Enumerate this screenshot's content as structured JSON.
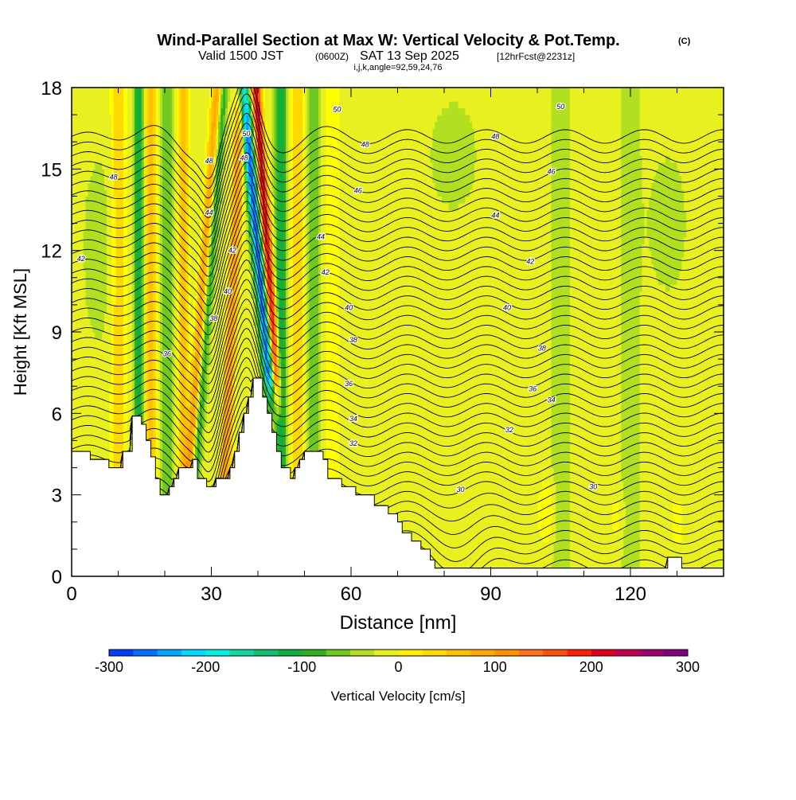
{
  "chart_data": {
    "type": "heatmap",
    "title_main": "Wind-Parallel Section at Max W: Vertical Velocity & Pot.Temp.",
    "title_mark": "(C)",
    "subtitle_valid": "Valid 1500 JST",
    "subtitle_utc": "(0600Z)",
    "subtitle_date": "SAT 13 Sep 2025",
    "subtitle_fcst": "[12hrFcst@2231z]",
    "subtitle_ijk": "i,j,k,angle=92,59,24,76",
    "xlabel": "Distance [nm]",
    "ylabel": "Height [Kft MSL]",
    "xlim": [
      0,
      140
    ],
    "ylim": [
      0,
      18
    ],
    "x_ticks": [
      0,
      30,
      60,
      90,
      120
    ],
    "x_tick_labels": [
      "0",
      "30",
      "60",
      "90",
      "120"
    ],
    "y_ticks": [
      0,
      3,
      6,
      9,
      12,
      15,
      18
    ],
    "y_tick_labels": [
      "0",
      "3",
      "6",
      "9",
      "12",
      "15",
      "18"
    ],
    "colorbar": {
      "label": "Vertical Velocity [cm/s]",
      "min": -300,
      "max": 300,
      "step": 25,
      "tick_values": [
        -300,
        -200,
        -100,
        0,
        100,
        200,
        300
      ],
      "tick_labels": [
        "-300",
        "-200",
        "-100",
        "0",
        "100",
        "200",
        "300"
      ],
      "colors": [
        "#0000f0",
        "#0040f8",
        "#0070ff",
        "#00a8ff",
        "#00d8ff",
        "#00f0e0",
        "#10d8a0",
        "#10c070",
        "#10b040",
        "#30b020",
        "#70c820",
        "#b0e020",
        "#e8f020",
        "#fff000",
        "#ffd800",
        "#ffc000",
        "#ffa800",
        "#ff9000",
        "#ff7020",
        "#ff5010",
        "#ff2000",
        "#e00020",
        "#c00050",
        "#a00070",
        "#800080",
        "#600090"
      ]
    },
    "topography": [
      [
        0,
        4.6
      ],
      [
        4,
        4.6
      ],
      [
        4,
        4.3
      ],
      [
        8,
        4.3
      ],
      [
        8,
        4.0
      ],
      [
        11,
        4.0
      ],
      [
        11,
        4.6
      ],
      [
        13,
        4.6
      ],
      [
        13,
        5.9
      ],
      [
        15,
        5.9
      ],
      [
        15,
        5.6
      ],
      [
        16,
        5.6
      ],
      [
        16,
        5.0
      ],
      [
        17,
        5.0
      ],
      [
        17,
        4.4
      ],
      [
        18,
        4.4
      ],
      [
        18,
        3.6
      ],
      [
        19,
        3.6
      ],
      [
        19,
        3.0
      ],
      [
        21,
        3.0
      ],
      [
        21,
        3.3
      ],
      [
        22,
        3.3
      ],
      [
        22,
        3.6
      ],
      [
        23,
        3.6
      ],
      [
        23,
        4.0
      ],
      [
        26,
        4.0
      ],
      [
        26,
        4.3
      ],
      [
        27,
        4.3
      ],
      [
        27,
        3.6
      ],
      [
        29,
        3.6
      ],
      [
        29,
        3.3
      ],
      [
        31,
        3.3
      ],
      [
        31,
        3.6
      ],
      [
        34,
        3.6
      ],
      [
        34,
        4.0
      ],
      [
        35,
        4.0
      ],
      [
        35,
        4.6
      ],
      [
        36,
        4.6
      ],
      [
        36,
        5.3
      ],
      [
        37,
        5.3
      ],
      [
        37,
        6.0
      ],
      [
        38,
        6.0
      ],
      [
        38,
        6.6
      ],
      [
        39,
        6.6
      ],
      [
        39,
        7.3
      ],
      [
        41,
        7.3
      ],
      [
        41,
        6.6
      ],
      [
        42,
        6.6
      ],
      [
        42,
        6.0
      ],
      [
        43,
        6.0
      ],
      [
        43,
        5.3
      ],
      [
        44,
        5.3
      ],
      [
        44,
        4.6
      ],
      [
        45,
        4.6
      ],
      [
        45,
        4.0
      ],
      [
        47,
        4.0
      ],
      [
        47,
        3.6
      ],
      [
        48,
        3.6
      ],
      [
        48,
        4.0
      ],
      [
        49,
        4.0
      ],
      [
        49,
        4.3
      ],
      [
        50,
        4.3
      ],
      [
        50,
        4.6
      ],
      [
        54,
        4.6
      ],
      [
        54,
        4.3
      ],
      [
        55,
        4.3
      ],
      [
        55,
        3.6
      ],
      [
        58,
        3.6
      ],
      [
        58,
        3.3
      ],
      [
        61,
        3.3
      ],
      [
        61,
        3.0
      ],
      [
        65,
        3.0
      ],
      [
        65,
        2.6
      ],
      [
        68,
        2.6
      ],
      [
        68,
        2.3
      ],
      [
        70,
        2.3
      ],
      [
        70,
        2.0
      ],
      [
        71,
        2.0
      ],
      [
        71,
        1.6
      ],
      [
        73,
        1.6
      ],
      [
        73,
        1.3
      ],
      [
        75,
        1.3
      ],
      [
        75,
        1.0
      ],
      [
        77,
        1.0
      ],
      [
        77,
        0.6
      ],
      [
        78,
        0.6
      ],
      [
        78,
        0.3
      ],
      [
        128,
        0.3
      ],
      [
        128,
        0.7
      ],
      [
        131,
        0.7
      ],
      [
        131,
        0.3
      ],
      [
        140,
        0.3
      ]
    ],
    "w_bands": [
      {
        "x": 10,
        "w": 1.6,
        "amp": 60,
        "x0": 10
      },
      {
        "x": 14.5,
        "w": 1.0,
        "amp": -110,
        "x0": 14.5
      },
      {
        "x": 17,
        "w": 1.3,
        "amp": 90,
        "x0": 17
      },
      {
        "x": 20.5,
        "w": 1.6,
        "amp": -50,
        "x0": 20.5
      },
      {
        "x": 24,
        "w": 1.2,
        "amp": 70,
        "x0": 24
      },
      {
        "x": 28.5,
        "w": 1.3,
        "amp": 130,
        "x0": 29,
        "tilt": 0.42
      },
      {
        "x": 31.5,
        "w": 1.0,
        "amp": -130,
        "x0": 30,
        "tilt": 0.42
      },
      {
        "x": 35,
        "w": 1.3,
        "amp": 110,
        "x0": 35,
        "tilt": 0.25
      },
      {
        "x": 38,
        "w": 1.2,
        "amp": -260,
        "x0": 40,
        "tilt": -0.52
      },
      {
        "x": 42,
        "w": 1.0,
        "amp": 240,
        "x0": 42,
        "tilt": -0.4
      },
      {
        "x": 45,
        "w": 1.2,
        "amp": -110,
        "x0": 45
      },
      {
        "x": 48.5,
        "w": 1.3,
        "amp": 60,
        "x0": 48.5
      },
      {
        "x": 52,
        "w": 1.5,
        "amp": -50,
        "x0": 52
      },
      {
        "x": 56,
        "w": 1.8,
        "amp": 35,
        "x0": 56
      },
      {
        "x": 105,
        "w": 2.0,
        "amp": -25,
        "x0": 105
      },
      {
        "x": 120,
        "w": 2.5,
        "amp": -20,
        "x0": 120
      }
    ],
    "theta_contour_labels": [
      {
        "x": 9,
        "y": 14.7,
        "t": "48"
      },
      {
        "x": 2,
        "y": 11.7,
        "t": "42"
      },
      {
        "x": 20.5,
        "y": 8.2,
        "t": "36"
      },
      {
        "x": 29.5,
        "y": 15.3,
        "t": "48"
      },
      {
        "x": 29.5,
        "y": 13.4,
        "t": "44"
      },
      {
        "x": 34.5,
        "y": 12.0,
        "t": "42"
      },
      {
        "x": 33.5,
        "y": 10.5,
        "t": "40"
      },
      {
        "x": 30.5,
        "y": 9.5,
        "t": "38"
      },
      {
        "x": 37.5,
        "y": 16.3,
        "t": "50"
      },
      {
        "x": 37,
        "y": 15.4,
        "t": "48"
      },
      {
        "x": 57,
        "y": 17.2,
        "t": "50"
      },
      {
        "x": 63,
        "y": 15.9,
        "t": "48"
      },
      {
        "x": 61.5,
        "y": 14.2,
        "t": "46"
      },
      {
        "x": 53.5,
        "y": 12.5,
        "t": "44"
      },
      {
        "x": 54.5,
        "y": 11.2,
        "t": "42"
      },
      {
        "x": 59.5,
        "y": 9.9,
        "t": "40"
      },
      {
        "x": 60.5,
        "y": 8.7,
        "t": "38"
      },
      {
        "x": 59.5,
        "y": 7.1,
        "t": "36"
      },
      {
        "x": 60.5,
        "y": 5.8,
        "t": "34"
      },
      {
        "x": 60.5,
        "y": 4.9,
        "t": "32"
      },
      {
        "x": 83.5,
        "y": 3.2,
        "t": "30"
      },
      {
        "x": 105,
        "y": 17.3,
        "t": "50"
      },
      {
        "x": 91,
        "y": 16.2,
        "t": "48"
      },
      {
        "x": 103,
        "y": 14.9,
        "t": "46"
      },
      {
        "x": 91,
        "y": 13.3,
        "t": "44"
      },
      {
        "x": 98.5,
        "y": 11.6,
        "t": "42"
      },
      {
        "x": 93.5,
        "y": 9.9,
        "t": "40"
      },
      {
        "x": 101,
        "y": 8.4,
        "t": "38"
      },
      {
        "x": 99,
        "y": 6.9,
        "t": "36"
      },
      {
        "x": 103,
        "y": 6.5,
        "t": "34"
      },
      {
        "x": 94,
        "y": 5.4,
        "t": "32"
      },
      {
        "x": 112,
        "y": 3.3,
        "t": "30"
      }
    ]
  }
}
